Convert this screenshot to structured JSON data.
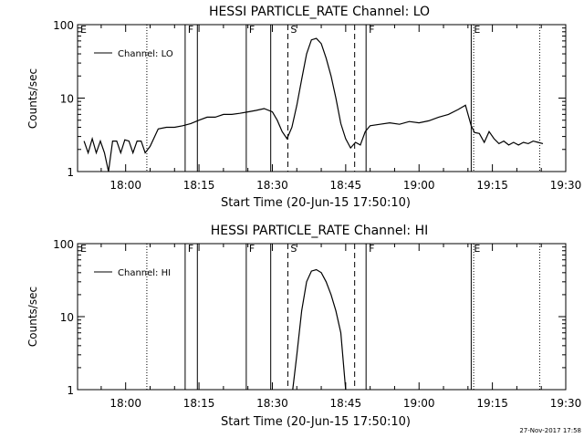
{
  "footer": {
    "timestamp": "27-Nov-2017 17:58"
  },
  "chart_data": [
    {
      "type": "line",
      "title": "HESSI PARTICLE_RATE Channel: LO",
      "xlabel": "Start Time (20-Jun-15 17:50:10)",
      "ylabel": "Counts/sec",
      "y_scale": "log",
      "ylim": [
        1,
        100
      ],
      "y_ticks": [
        "1",
        "10",
        "100"
      ],
      "xlim": [
        "17:50:10",
        "19:30:00"
      ],
      "x_ticks": [
        "18:00",
        "18:15",
        "18:30",
        "18:45",
        "19:00",
        "19:15",
        "19:30"
      ],
      "legend": {
        "position": "top-left",
        "entries": [
          "Channel: LO"
        ]
      },
      "grid": false,
      "markers": [
        {
          "time": "17:50:10",
          "label": "E",
          "style": "solid"
        },
        {
          "time": "18:04:20",
          "label": "",
          "style": "dotted"
        },
        {
          "time": "18:12:10",
          "label": "F",
          "style": "solid"
        },
        {
          "time": "18:14:40",
          "label": "",
          "style": "solid"
        },
        {
          "time": "18:24:40",
          "label": "F",
          "style": "solid"
        },
        {
          "time": "18:29:40",
          "label": "",
          "style": "solid"
        },
        {
          "time": "18:33:10",
          "label": "S",
          "style": "dashed"
        },
        {
          "time": "18:46:50",
          "label": "",
          "style": "dashed"
        },
        {
          "time": "18:49:10",
          "label": "F",
          "style": "solid"
        },
        {
          "time": "19:10:40",
          "label": "E",
          "style": "solid"
        },
        {
          "time": "19:11:10",
          "label": "",
          "style": "dotted"
        },
        {
          "time": "19:24:40",
          "label": "",
          "style": "dotted"
        }
      ],
      "series": [
        {
          "x": [
            "17:51:30",
            "17:52:20",
            "17:53:10",
            "17:54:00",
            "17:54:50",
            "17:55:40",
            "17:56:30",
            "17:57:20",
            "17:58:10",
            "17:59:00",
            "17:59:50",
            "18:00:40",
            "18:01:30",
            "18:02:20",
            "18:03:10",
            "18:04:00",
            "18:05:00",
            "18:06:40",
            "18:08:20",
            "18:10:00",
            "18:11:40",
            "18:13:20",
            "18:15:00",
            "18:16:40",
            "18:18:20",
            "18:20:00",
            "18:21:40",
            "18:23:20",
            "18:25:00",
            "18:26:40",
            "18:28:20",
            "18:30:00",
            "18:31:00",
            "18:32:00",
            "18:33:00",
            "18:34:00",
            "18:35:00",
            "18:36:00",
            "18:37:00",
            "18:38:00",
            "18:39:00",
            "18:40:00",
            "18:41:00",
            "18:42:00",
            "18:43:00",
            "18:44:00",
            "18:45:00",
            "18:46:00",
            "18:47:00",
            "18:48:00",
            "18:49:00",
            "18:50:00",
            "18:52:00",
            "18:54:00",
            "18:56:00",
            "18:58:00",
            "19:00:00",
            "19:02:00",
            "19:04:00",
            "19:06:00",
            "19:08:00",
            "19:09:30",
            "19:10:40",
            "19:11:20",
            "19:12:20",
            "19:13:20",
            "19:14:20",
            "19:15:20",
            "19:16:20",
            "19:17:20",
            "19:18:20",
            "19:19:20",
            "19:20:20",
            "19:21:20",
            "19:22:20",
            "19:23:20",
            "19:24:20",
            "19:25:20"
          ],
          "values": [
            2.6,
            1.8,
            2.8,
            1.8,
            2.6,
            1.8,
            1.0,
            2.6,
            2.6,
            1.8,
            2.7,
            2.6,
            1.8,
            2.6,
            2.6,
            1.8,
            2.2,
            3.8,
            4.0,
            4.0,
            4.2,
            4.5,
            5.0,
            5.5,
            5.5,
            6.0,
            6.0,
            6.2,
            6.5,
            6.8,
            7.2,
            6.5,
            5.0,
            3.5,
            2.8,
            4.0,
            8.0,
            18.0,
            40.0,
            62.0,
            65.0,
            55.0,
            35.0,
            20.0,
            10.0,
            4.5,
            2.8,
            2.1,
            2.5,
            2.3,
            3.5,
            4.2,
            4.4,
            4.6,
            4.4,
            4.8,
            4.6,
            4.9,
            5.5,
            6.0,
            7.0,
            8.0,
            4.2,
            3.4,
            3.3,
            2.5,
            3.5,
            2.8,
            2.4,
            2.6,
            2.3,
            2.5,
            2.3,
            2.5,
            2.4,
            2.6,
            2.5,
            2.4
          ]
        }
      ]
    },
    {
      "type": "line",
      "title": "HESSI PARTICLE_RATE Channel: HI",
      "xlabel": "Start Time (20-Jun-15 17:50:10)",
      "ylabel": "Counts/sec",
      "y_scale": "log",
      "ylim": [
        1,
        100
      ],
      "y_ticks": [
        "1",
        "10",
        "100"
      ],
      "xlim": [
        "17:50:10",
        "19:30:00"
      ],
      "x_ticks": [
        "18:00",
        "18:15",
        "18:30",
        "18:45",
        "19:00",
        "19:15",
        "19:30"
      ],
      "legend": {
        "position": "top-left",
        "entries": [
          "Channel: HI"
        ]
      },
      "grid": false,
      "markers": [
        {
          "time": "17:50:10",
          "label": "E",
          "style": "solid"
        },
        {
          "time": "18:04:20",
          "label": "",
          "style": "dotted"
        },
        {
          "time": "18:12:10",
          "label": "F",
          "style": "solid"
        },
        {
          "time": "18:14:40",
          "label": "",
          "style": "solid"
        },
        {
          "time": "18:24:40",
          "label": "F",
          "style": "solid"
        },
        {
          "time": "18:29:40",
          "label": "",
          "style": "solid"
        },
        {
          "time": "18:33:10",
          "label": "S",
          "style": "dashed"
        },
        {
          "time": "18:46:50",
          "label": "",
          "style": "dashed"
        },
        {
          "time": "18:49:10",
          "label": "F",
          "style": "solid"
        },
        {
          "time": "19:10:40",
          "label": "E",
          "style": "solid"
        },
        {
          "time": "19:11:10",
          "label": "",
          "style": "dotted"
        },
        {
          "time": "19:24:40",
          "label": "",
          "style": "dotted"
        }
      ],
      "series": [
        {
          "x": [
            "18:34:10",
            "18:35:00",
            "18:36:00",
            "18:37:00",
            "18:38:00",
            "18:39:00",
            "18:40:00",
            "18:41:00",
            "18:42:00",
            "18:43:00",
            "18:44:00",
            "18:45:00"
          ],
          "values": [
            1.0,
            3.0,
            12.0,
            30.0,
            42.0,
            44.0,
            40.0,
            30.0,
            20.0,
            12.0,
            6.0,
            1.0
          ]
        }
      ]
    }
  ]
}
